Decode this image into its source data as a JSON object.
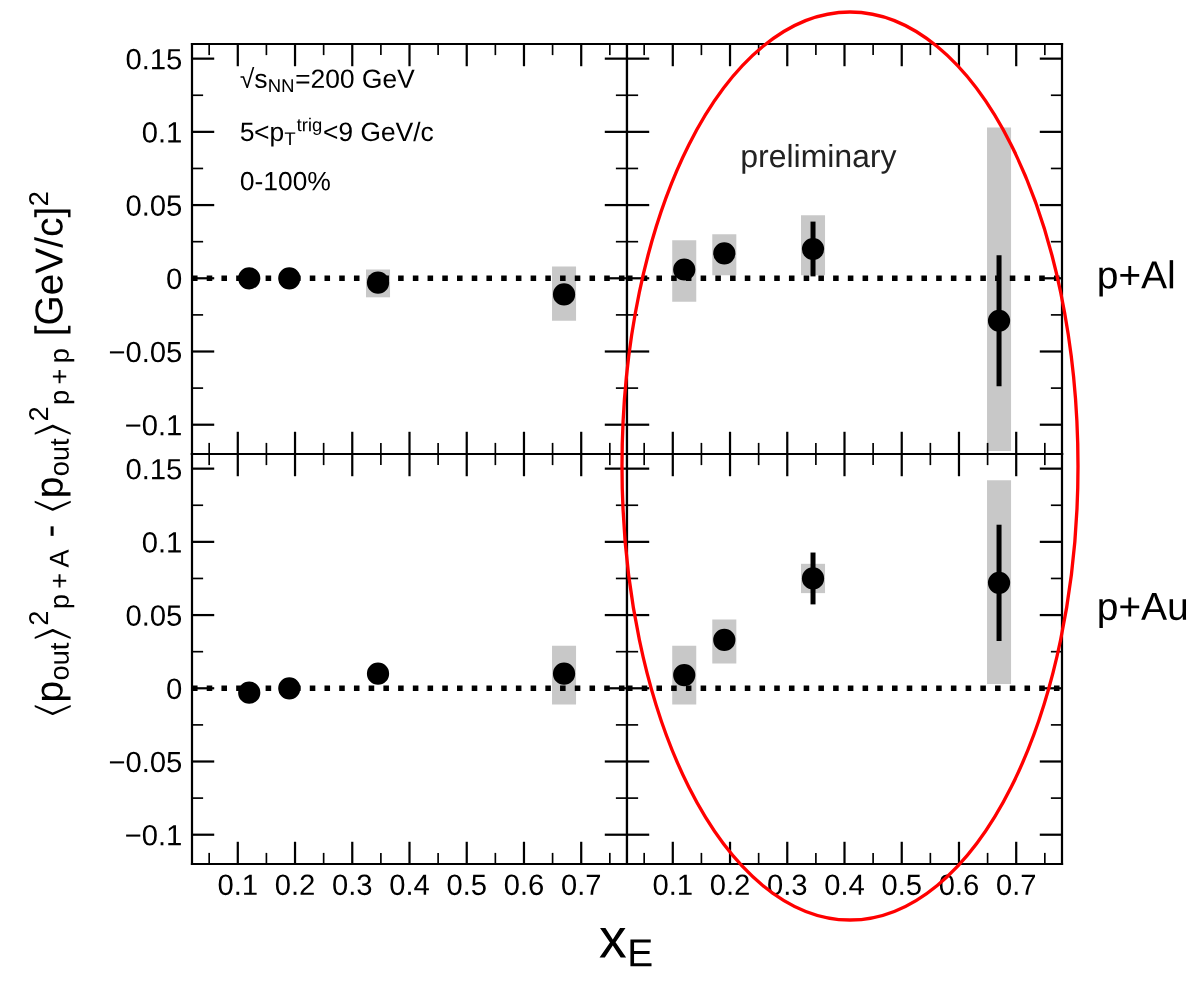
{
  "chart_data": [
    {
      "type": "scatter",
      "xlim": [
        0.02,
        0.78
      ],
      "ylim": [
        -0.12,
        0.16
      ],
      "xticks": [
        0.1,
        0.2,
        0.3,
        0.4,
        0.5,
        0.6,
        0.7
      ],
      "yticks": [
        -0.1,
        -0.05,
        0,
        0.05,
        0.1,
        0.15
      ],
      "tick_labels": "y",
      "ylabel": "⟨p$_{out}$⟩$^{2}$$_{p+A}$ - ⟨p$_{out}$⟩$^{2}$$_{p+p}$ [GeV/c]$^{2}$",
      "annotations": [
        "√s$_{NN}$=200 GeV",
        "5<p$_{T}$$^{trig}$<9 GeV/c",
        "0-100%"
      ],
      "ref_lines": [
        {
          "axis": "y",
          "value": 0,
          "color": "#000000",
          "line_style": "dotted"
        }
      ],
      "series": [
        {
          "type": "bar",
          "x": [
            0.345,
            0.67
          ],
          "base": [
            -0.013,
            -0.029
          ],
          "values": [
            0.019,
            0.037
          ],
          "color": "#c8c8c8"
        },
        {
          "x": [
            0.12,
            0.19,
            0.345,
            0.67
          ],
          "values": [
            0.0,
            0.0,
            -0.003,
            -0.011
          ],
          "color": "#000000",
          "marker": "circle"
        }
      ]
    },
    {
      "type": "scatter",
      "xlim": [
        0.02,
        0.78
      ],
      "ylim": [
        -0.12,
        0.16
      ],
      "xticks": [
        0.1,
        0.2,
        0.3,
        0.4,
        0.5,
        0.6,
        0.7
      ],
      "yticks": [
        -0.1,
        -0.05,
        0,
        0.05,
        0.1,
        0.15
      ],
      "tick_labels": false,
      "annotations": [
        "preliminary",
        "p+Al"
      ],
      "ref_lines": [
        {
          "axis": "y",
          "value": 0,
          "color": "#000000",
          "line_style": "dotted"
        }
      ],
      "series": [
        {
          "type": "bar",
          "x": [
            0.12,
            0.19,
            0.345,
            0.67
          ],
          "base": [
            -0.016,
            0.002,
            0.002,
            -0.118
          ],
          "values": [
            0.042,
            0.028,
            0.041,
            0.221
          ],
          "color": "#c8c8c8"
        },
        {
          "x": [
            0.12,
            0.19,
            0.345,
            0.67
          ],
          "values": [
            0.006,
            0.017,
            0.02,
            -0.029
          ],
          "errors": [
            null,
            null,
            [
              0.003,
              0.037
            ],
            [
              -0.072,
              0.014
            ]
          ],
          "color": "#000000",
          "marker": "circle"
        }
      ]
    },
    {
      "type": "scatter",
      "xlim": [
        0.02,
        0.78
      ],
      "ylim": [
        -0.12,
        0.16
      ],
      "xticks": [
        0.1,
        0.2,
        0.3,
        0.4,
        0.5,
        0.6,
        0.7
      ],
      "yticks": [
        -0.1,
        -0.05,
        0,
        0.05,
        0.1,
        0.15
      ],
      "ref_lines": [
        {
          "axis": "y",
          "value": 0,
          "color": "#000000",
          "line_style": "dotted"
        }
      ],
      "series": [
        {
          "type": "bar",
          "x": [
            0.67
          ],
          "base": [
            -0.011
          ],
          "values": [
            0.04
          ],
          "color": "#c8c8c8"
        },
        {
          "x": [
            0.12,
            0.19,
            0.345,
            0.67
          ],
          "values": [
            -0.003,
            0.0,
            0.01,
            0.01
          ],
          "color": "#000000",
          "marker": "circle"
        }
      ]
    },
    {
      "type": "scatter",
      "xlim": [
        0.02,
        0.78
      ],
      "ylim": [
        -0.12,
        0.16
      ],
      "xticks": [
        0.1,
        0.2,
        0.3,
        0.4,
        0.5,
        0.6,
        0.7
      ],
      "yticks": [
        -0.1,
        -0.05,
        0,
        0.05,
        0.1,
        0.15
      ],
      "tick_labels": "x",
      "xlabel": "x$_{E}$",
      "annotations": [
        "p+Au"
      ],
      "ref_lines": [
        {
          "axis": "y",
          "value": 0,
          "color": "#000000",
          "line_style": "dotted"
        }
      ],
      "series": [
        {
          "type": "bar",
          "x": [
            0.12,
            0.19,
            0.345,
            0.67
          ],
          "base": [
            -0.011,
            0.017,
            0.065,
            0.003
          ],
          "values": [
            0.04,
            0.03,
            0.02,
            0.139
          ],
          "color": "#c8c8c8"
        },
        {
          "x": [
            0.12,
            0.19,
            0.345,
            0.67
          ],
          "values": [
            0.009,
            0.033,
            0.075,
            0.072
          ],
          "errors": [
            null,
            null,
            [
              0.059,
              0.091
            ],
            [
              0.034,
              0.11
            ]
          ],
          "color": "#000000",
          "marker": "circle"
        }
      ]
    }
  ]
}
